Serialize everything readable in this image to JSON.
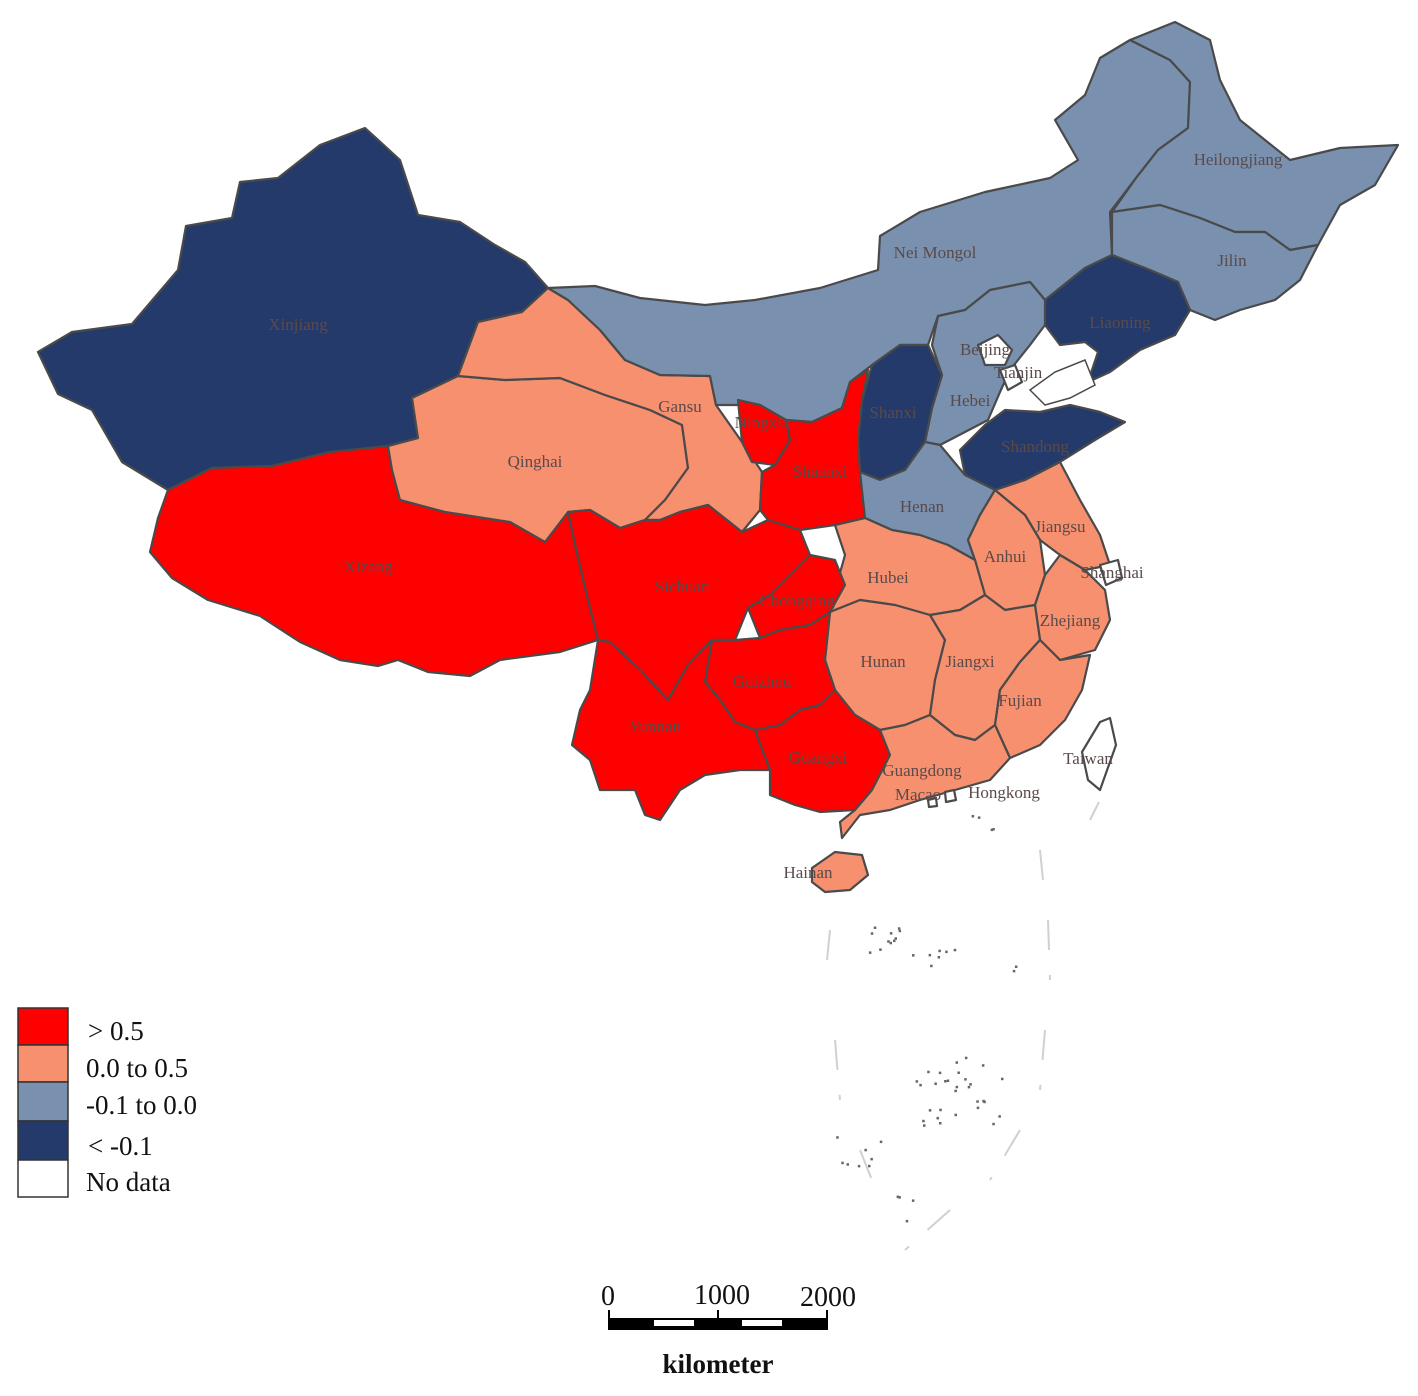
{
  "colors": {
    "gt_0_5": "#ff0000",
    "range_0_0_5": "#f7906f",
    "range_neg0_1_0": "#7990ae",
    "lt_neg0_1": "#243a6b",
    "no_data": "#ffffff"
  },
  "legend": {
    "items": [
      {
        "label": "> 0.5",
        "class": "gt_0_5"
      },
      {
        "label": "0.0 to 0.5",
        "class": "range_0_0_5"
      },
      {
        "label": "-0.1 to 0.0",
        "class": "range_neg0_1_0"
      },
      {
        "label": "< -0.1",
        "class": "lt_neg0_1"
      },
      {
        "label": "No data",
        "class": "no_data"
      }
    ]
  },
  "scale_bar": {
    "ticks": [
      "0",
      "1000",
      "2000"
    ],
    "unit": "kilometer"
  },
  "provinces": {
    "xinjiang": {
      "label": "Xinjiang",
      "class": "lt_neg0_1"
    },
    "xizang": {
      "label": "Xizang",
      "class": "gt_0_5"
    },
    "qinghai": {
      "label": "Qinghai",
      "class": "range_0_0_5"
    },
    "gansu": {
      "label": "Gansu",
      "class": "range_0_0_5"
    },
    "neimongol": {
      "label": "Nei Mongol",
      "class": "range_neg0_1_0"
    },
    "heilongjiang": {
      "label": "Heilongjiang",
      "class": "range_neg0_1_0"
    },
    "jilin": {
      "label": "Jilin",
      "class": "range_neg0_1_0"
    },
    "liaoning": {
      "label": "Liaoning",
      "class": "lt_neg0_1"
    },
    "beijing": {
      "label": "Beijing",
      "class": "no_data"
    },
    "tianjin": {
      "label": "Tianjin",
      "class": "no_data"
    },
    "hebei": {
      "label": "Hebei",
      "class": "range_neg0_1_0"
    },
    "shanxi": {
      "label": "Shanxi",
      "class": "lt_neg0_1"
    },
    "shandong": {
      "label": "Shandong",
      "class": "lt_neg0_1"
    },
    "ningxia": {
      "label": "Ningxia",
      "class": "gt_0_5"
    },
    "shaanxi": {
      "label": "Shaanxi",
      "class": "gt_0_5"
    },
    "henan": {
      "label": "Henan",
      "class": "range_neg0_1_0"
    },
    "jiangsu": {
      "label": "Jiangsu",
      "class": "range_0_0_5"
    },
    "anhui": {
      "label": "Anhui",
      "class": "range_0_0_5"
    },
    "shanghai": {
      "label": "Shanghai",
      "class": "no_data"
    },
    "zhejiang": {
      "label": "Zhejiang",
      "class": "range_0_0_5"
    },
    "hubei": {
      "label": "Hubei",
      "class": "range_0_0_5"
    },
    "sichuan": {
      "label": "Sichuan",
      "class": "gt_0_5"
    },
    "chongqing": {
      "label": "Chongqing",
      "class": "gt_0_5"
    },
    "hunan": {
      "label": "Hunan",
      "class": "range_0_0_5"
    },
    "jiangxi": {
      "label": "Jiangxi",
      "class": "range_0_0_5"
    },
    "fujian": {
      "label": "Fujian",
      "class": "range_0_0_5"
    },
    "guizhou": {
      "label": "Guizhou",
      "class": "gt_0_5"
    },
    "yunnan": {
      "label": "Yunnan",
      "class": "gt_0_5"
    },
    "guangxi": {
      "label": "Guangxi",
      "class": "gt_0_5"
    },
    "guangdong": {
      "label": "Guangdong",
      "class": "range_0_0_5"
    },
    "hainan": {
      "label": "Hainan",
      "class": "range_0_0_5"
    },
    "taiwan": {
      "label": "Taiwan",
      "class": "no_data"
    },
    "hongkong": {
      "label": "Hongkong",
      "class": "no_data"
    },
    "macao": {
      "label": "Macao",
      "class": "no_data"
    }
  }
}
